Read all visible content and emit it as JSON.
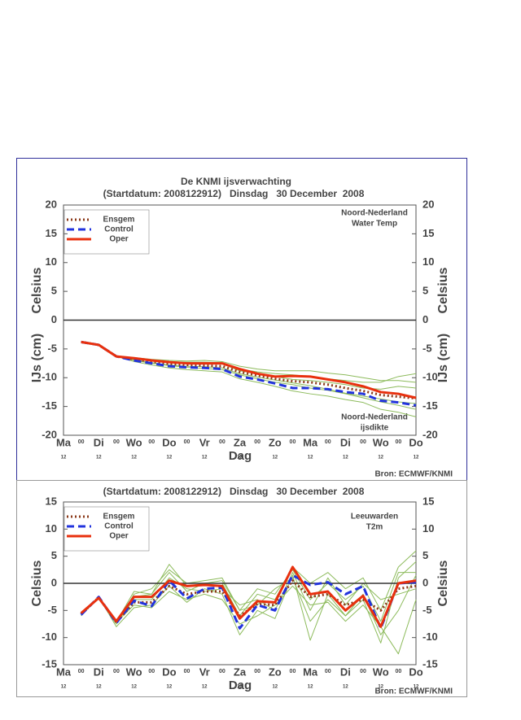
{
  "chart_data": [
    {
      "type": "line",
      "title": "De KNMI ijsverwachting",
      "subtitle": "(Startdatum: 2008122912)   Dinsdag   30 December  2008",
      "xlabel": "Dag",
      "ylabel": [
        "Celsius",
        "IJs (cm)"
      ],
      "source": "Bron: ECMWF/KNMI",
      "annotations": [
        [
          "Noord-Nederland",
          "Water Temp"
        ],
        [
          "Noord-Nederland",
          "ijsdikte"
        ]
      ],
      "categories": [
        "Ma",
        "00",
        "Di",
        "00",
        "Wo",
        "00",
        "Do",
        "00",
        "Vr",
        "00",
        "Za",
        "00",
        "Zo",
        "00",
        "Ma",
        "00",
        "Di",
        "00",
        "Wo",
        "00",
        "Do"
      ],
      "sublabels": [
        "12",
        null,
        "12",
        null,
        "12",
        null,
        "12",
        null,
        "12",
        null,
        "12",
        null,
        "12",
        null,
        "12",
        null,
        "12",
        null,
        "12",
        null,
        "12"
      ],
      "ylim": [
        -20,
        20
      ],
      "yticks": [
        20,
        15,
        10,
        5,
        0,
        -5,
        -10,
        -15,
        -20
      ],
      "zero_line": true,
      "legend": "upper left",
      "ensemble": {
        "color": "#8dbb5c",
        "members": [
          [
            null,
            -3.8,
            -4.3,
            -6.3,
            -6.5,
            -6.8,
            -7.0,
            -7.1,
            -7.0,
            -7.2,
            -8.0,
            -8.5,
            -8.8,
            -8.8,
            -8.8,
            -9.2,
            -9.5,
            -10.0,
            -10.5,
            -10.5,
            -10.8
          ],
          [
            null,
            -3.8,
            -4.3,
            -6.3,
            -7.2,
            -7.8,
            -8.3,
            -8.6,
            -8.8,
            -9.0,
            -10.2,
            -10.8,
            -11.5,
            -12.3,
            -12.8,
            -13.2,
            -13.8,
            -14.3,
            -15.5,
            -16.0,
            -16.8
          ],
          [
            null,
            -3.8,
            -4.3,
            -6.3,
            -6.8,
            -7.0,
            -7.3,
            -7.4,
            -7.5,
            -7.6,
            -8.8,
            -9.3,
            -9.8,
            -10.3,
            -10.5,
            -10.8,
            -11.2,
            -11.8,
            -12.0,
            -11.5,
            -11.8
          ],
          [
            null,
            -3.8,
            -4.3,
            -6.3,
            -7.0,
            -7.5,
            -7.9,
            -8.2,
            -8.4,
            -8.6,
            -9.5,
            -10.2,
            -10.8,
            -11.2,
            -11.8,
            -12.2,
            -12.8,
            -13.5,
            -14.2,
            -14.8,
            -15.5
          ],
          [
            null,
            -3.8,
            -4.3,
            -6.3,
            -6.6,
            -7.0,
            -7.2,
            -7.3,
            -7.3,
            -7.4,
            -8.5,
            -9.0,
            -9.3,
            -9.5,
            -9.8,
            -10.2,
            -10.5,
            -10.8,
            -10.8,
            -9.8,
            -9.3
          ],
          [
            null,
            -3.8,
            -4.3,
            -6.3,
            -6.9,
            -7.4,
            -7.8,
            -8.0,
            -8.1,
            -8.3,
            -9.3,
            -9.9,
            -10.4,
            -10.9,
            -11.4,
            -12.0,
            -12.7,
            -13.2,
            -13.7,
            -14.2,
            -14.5
          ]
        ]
      },
      "series": [
        {
          "name": "Ensgem",
          "color": "#8b3a1a",
          "dash": "dotted",
          "values": [
            null,
            -3.8,
            -4.3,
            -6.3,
            -6.8,
            -7.2,
            -7.6,
            -7.8,
            -7.9,
            -8.0,
            -9.0,
            -9.6,
            -10.2,
            -10.6,
            -10.8,
            -11.2,
            -11.8,
            -12.3,
            -13.0,
            -13.3,
            -13.6
          ]
        },
        {
          "name": "Control",
          "color": "#2233dd",
          "dash": "dashed",
          "values": [
            null,
            -3.8,
            -4.3,
            -6.3,
            -7.0,
            -7.5,
            -8.0,
            -8.2,
            -8.3,
            -8.5,
            -9.8,
            -10.3,
            -11.0,
            -11.8,
            -11.8,
            -12.0,
            -12.5,
            -12.8,
            -14.0,
            -14.3,
            -14.8
          ]
        },
        {
          "name": "Oper",
          "color": "#e8300e",
          "dash": "solid",
          "values": [
            null,
            -3.8,
            -4.3,
            -6.3,
            -6.6,
            -7.0,
            -7.3,
            -7.5,
            -7.5,
            -7.5,
            -8.5,
            -9.3,
            -9.8,
            -9.7,
            -9.8,
            -10.3,
            -10.8,
            -11.5,
            -12.5,
            -12.8,
            -13.5
          ]
        }
      ]
    },
    {
      "type": "line",
      "subtitle": "(Startdatum: 2008122912)   Dinsdag   30 December  2008",
      "xlabel": "Dag",
      "ylabel": [
        "Celsius"
      ],
      "source": "Bron: ECMWF/KNMI",
      "annotations": [
        [
          "Leeuwarden",
          "T2m"
        ]
      ],
      "categories": [
        "Ma",
        "00",
        "Di",
        "00",
        "Wo",
        "00",
        "Do",
        "00",
        "Vr",
        "00",
        "Za",
        "00",
        "Zo",
        "00",
        "Ma",
        "00",
        "Di",
        "00",
        "Wo",
        "00",
        "Do"
      ],
      "sublabels": [
        "12",
        null,
        "12",
        null,
        "12",
        null,
        "12",
        null,
        "12",
        null,
        "12",
        null,
        "12",
        null,
        "12",
        null,
        "12",
        null,
        "12",
        null,
        "12"
      ],
      "ylim": [
        -15,
        15
      ],
      "yticks": [
        15,
        10,
        5,
        0,
        -5,
        -10,
        -15
      ],
      "zero_line": true,
      "legend": "upper left",
      "ensemble": {
        "color": "#8dbb5c",
        "members": [
          [
            null,
            -5.5,
            -2.8,
            -7.5,
            -2,
            -1,
            2.5,
            0,
            0.5,
            1,
            -5,
            -1,
            -2,
            2.5,
            -3,
            0,
            -3,
            -0.5,
            -7,
            2,
            2
          ],
          [
            null,
            -6,
            -2.5,
            -8,
            -4.5,
            -4,
            -0.5,
            -3.5,
            -1,
            -2,
            -9.5,
            -5,
            -6.5,
            1.5,
            -10.5,
            -2,
            -6,
            -2,
            -9.5,
            -5,
            1.5
          ],
          [
            null,
            -5.5,
            -2.5,
            -7,
            -2.5,
            -2,
            2,
            -1.5,
            0,
            0,
            -6,
            -2,
            -3,
            3,
            0,
            2,
            -1,
            1,
            -5,
            3,
            6
          ],
          [
            null,
            -5.8,
            -2.7,
            -7.2,
            -4,
            -4.5,
            -1.5,
            -3,
            -2,
            -3,
            -7.5,
            -6,
            -4,
            -0.5,
            -4,
            -3.5,
            -7,
            -4,
            -8,
            -13,
            -3
          ],
          [
            null,
            -5.6,
            -2.6,
            -7.3,
            -3,
            -3,
            1,
            -1,
            -1.5,
            -1,
            -4,
            -3,
            -5,
            2,
            -5,
            1,
            -4,
            0,
            -3,
            -2,
            -1
          ],
          [
            null,
            -5.7,
            -2.6,
            -7.1,
            -1.5,
            -2,
            3.5,
            -0.5,
            0,
            0.5,
            -5,
            -4,
            -1,
            1,
            -7,
            -3,
            -6,
            -3,
            -11,
            1,
            4
          ]
        ]
      },
      "series": [
        {
          "name": "Ensgem",
          "color": "#8b3a1a",
          "dash": "dotted",
          "values": [
            null,
            -5.7,
            -2.6,
            -7.2,
            -3.5,
            -3.5,
            -0.5,
            -2.0,
            -1.5,
            -1.5,
            -6.0,
            -3.8,
            -4.0,
            0.5,
            -2.5,
            -2.0,
            -4.0,
            -3.0,
            -5.0,
            -1.0,
            -0.5
          ]
        },
        {
          "name": "Control",
          "color": "#2233dd",
          "dash": "dashed",
          "values": [
            null,
            -5.8,
            -2.5,
            -7.3,
            -3.2,
            -4.2,
            0.5,
            -2.8,
            -1.0,
            -0.8,
            -8.3,
            -4.0,
            -5.0,
            1.5,
            -0.3,
            0.2,
            -2.0,
            -0.5,
            -8.3,
            0.0,
            0.2
          ]
        },
        {
          "name": "Oper",
          "color": "#e8300e",
          "dash": "solid",
          "values": [
            null,
            -5.5,
            -2.7,
            -7.0,
            -2.5,
            -2.5,
            0.5,
            -0.5,
            -0.3,
            -0.5,
            -6.5,
            -3.3,
            -3.5,
            3.0,
            -2.0,
            -1.5,
            -5.0,
            -2.3,
            -8.0,
            0.0,
            0.5
          ]
        }
      ]
    }
  ]
}
